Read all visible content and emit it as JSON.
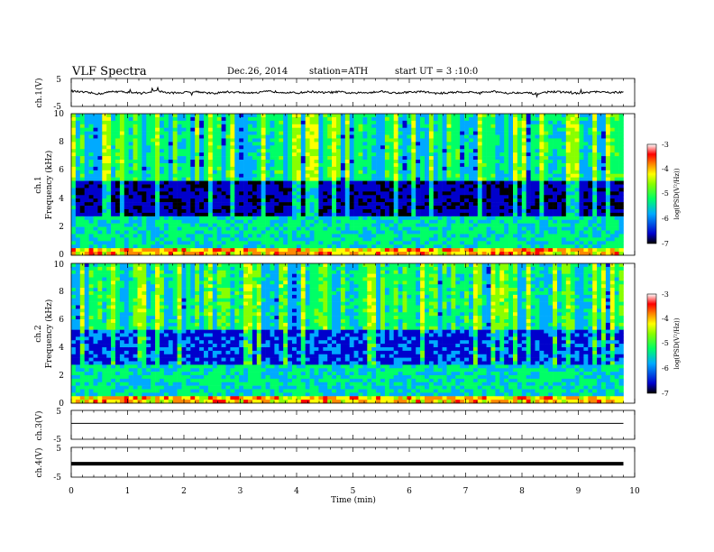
{
  "header": {
    "title": "VLF Spectra",
    "date": "Dec.26, 2014",
    "station": "station=ATH",
    "start": "start UT = 3 :10:0"
  },
  "chart_data": [
    {
      "type": "line",
      "panel": "ch1-voltage",
      "ylabel": "ch.1(V)",
      "ylim": [
        -5,
        5
      ],
      "yticks": [
        "5",
        "-5"
      ],
      "x": [
        0,
        0.25,
        0.5,
        0.75,
        1.0,
        1.25,
        1.5,
        1.75,
        2.0,
        2.25,
        2.5,
        2.75,
        3.0,
        3.25,
        3.5,
        3.75,
        4.0,
        4.25,
        4.5,
        4.75,
        5.0,
        5.25,
        5.5,
        5.75,
        6.0,
        6.25,
        6.5,
        6.75,
        7.0,
        7.25,
        7.5,
        7.75,
        8.0,
        8.25,
        8.5,
        8.75,
        9.0,
        9.25,
        9.5,
        9.8
      ],
      "values": [
        0.5,
        0.0,
        -0.5,
        0.4,
        0.1,
        -0.3,
        0.6,
        -0.2,
        0.0,
        0.3,
        -0.4,
        0.2,
        0.0,
        -0.3,
        0.4,
        0.1,
        -0.2,
        0.3,
        -0.1,
        0.2,
        -0.3,
        0.0,
        0.4,
        -0.2,
        0.1,
        0.3,
        -0.4,
        0.0,
        0.2,
        -0.1,
        0.3,
        -0.2,
        0.0,
        -0.5,
        0.3,
        0.1,
        -0.4,
        0.2,
        0.0,
        0.1
      ]
    },
    {
      "type": "heatmap",
      "panel": "ch1-spectrogram",
      "ylabel": "Frequency (kHz)",
      "channel_label": "ch.1",
      "ylim": [
        0,
        10
      ],
      "yticks": [
        "0",
        "2",
        "4",
        "6",
        "8",
        "10"
      ],
      "colorbar": {
        "label": "log(PSD(V²/Hz))",
        "range": [
          -7,
          -3
        ],
        "ticks": [
          "-3",
          "-4",
          "-5",
          "-6",
          "-7"
        ]
      }
    },
    {
      "type": "heatmap",
      "panel": "ch2-spectrogram",
      "ylabel": "Frequency (kHz)",
      "channel_label": "ch.2",
      "ylim": [
        0,
        10
      ],
      "yticks": [
        "0",
        "2",
        "4",
        "6",
        "8",
        "10"
      ],
      "colorbar": {
        "label": "log(PSD(V²/Hz))",
        "range": [
          -7,
          -3
        ],
        "ticks": [
          "-3",
          "-4",
          "-5",
          "-6",
          "-7"
        ]
      }
    },
    {
      "type": "line",
      "panel": "ch3-voltage",
      "ylabel": "ch.3(V)",
      "ylim": [
        -5,
        5
      ],
      "yticks": [
        "5",
        "-5"
      ],
      "x": [
        0,
        1,
        2,
        3,
        4,
        5,
        6,
        7,
        8,
        9,
        9.8
      ],
      "values": [
        0.5,
        0.5,
        0.5,
        0.5,
        0.5,
        0.5,
        0.5,
        0.5,
        0.5,
        0.5,
        0.5
      ]
    },
    {
      "type": "line",
      "panel": "ch4-voltage",
      "ylabel": "ch.4(V)",
      "ylim": [
        -5,
        5
      ],
      "yticks": [
        "5",
        "-5"
      ],
      "x": [
        0,
        1,
        2,
        3,
        4,
        5,
        6,
        7,
        8,
        9,
        9.8
      ],
      "values": [
        -0.5,
        -0.5,
        -0.5,
        -0.5,
        -0.5,
        -0.5,
        -0.5,
        -0.5,
        -0.5,
        -0.5,
        -0.5
      ]
    }
  ],
  "xaxis": {
    "label": "Time (min)",
    "ticks": [
      "0",
      "1",
      "2",
      "3",
      "4",
      "5",
      "6",
      "7",
      "8",
      "9",
      "10"
    ],
    "xlim": [
      0,
      10
    ],
    "data_end": 9.8
  }
}
